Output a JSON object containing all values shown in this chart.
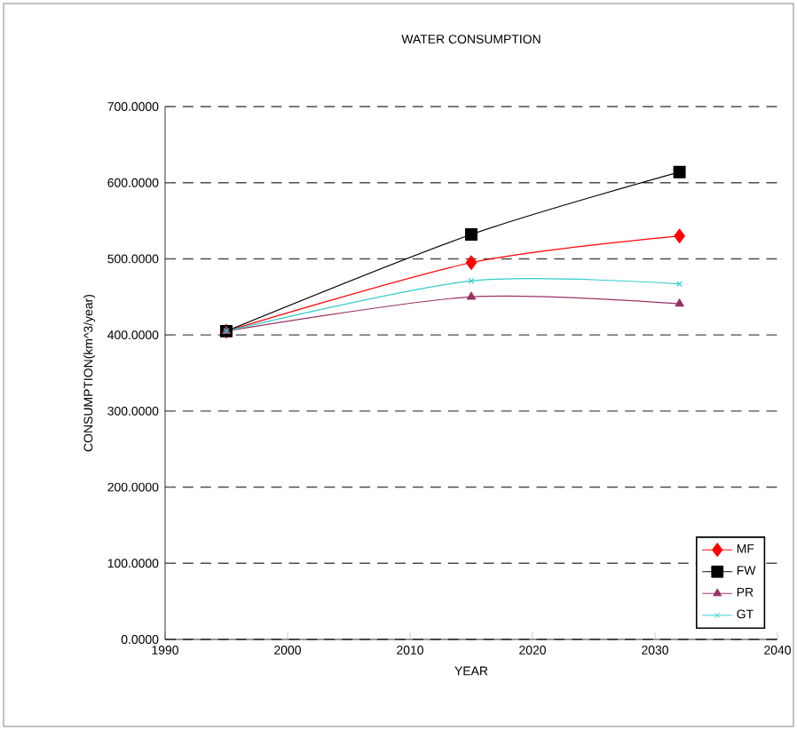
{
  "chart_data": {
    "type": "line",
    "title": "WATER CONSUMPTION",
    "xlabel": "YEAR",
    "ylabel": "CONSUMPTION(km^3/year)",
    "x": [
      1995,
      2015,
      2032
    ],
    "series": [
      {
        "name": "MF",
        "color": "#ff0000",
        "marker": "diamond",
        "values": [
          405,
          495,
          530
        ]
      },
      {
        "name": "FW",
        "color": "#000000",
        "marker": "square",
        "values": [
          405,
          532,
          614
        ]
      },
      {
        "name": "PR",
        "color": "#993366",
        "marker": "triangle",
        "values": [
          405,
          450,
          441
        ]
      },
      {
        "name": "GT",
        "color": "#33cccc",
        "marker": "cross",
        "values": [
          405,
          471,
          467
        ]
      }
    ],
    "xlim": [
      1990,
      2040
    ],
    "xticks": [
      1990,
      2000,
      2010,
      2020,
      2030,
      2040
    ],
    "ylim": [
      0,
      700
    ],
    "yticks": [
      {
        "value": 0,
        "label": "0.0000"
      },
      {
        "value": 100,
        "label": "100.0000"
      },
      {
        "value": 200,
        "label": "200.0000"
      },
      {
        "value": 300,
        "label": "300.0000"
      },
      {
        "value": 400,
        "label": "400.0000"
      },
      {
        "value": 500,
        "label": "500.0000"
      },
      {
        "value": 600,
        "label": "600.0000"
      },
      {
        "value": 700,
        "label": "700.0000"
      }
    ],
    "grid": "y",
    "legend": "bottom right",
    "line_style": "solid"
  }
}
